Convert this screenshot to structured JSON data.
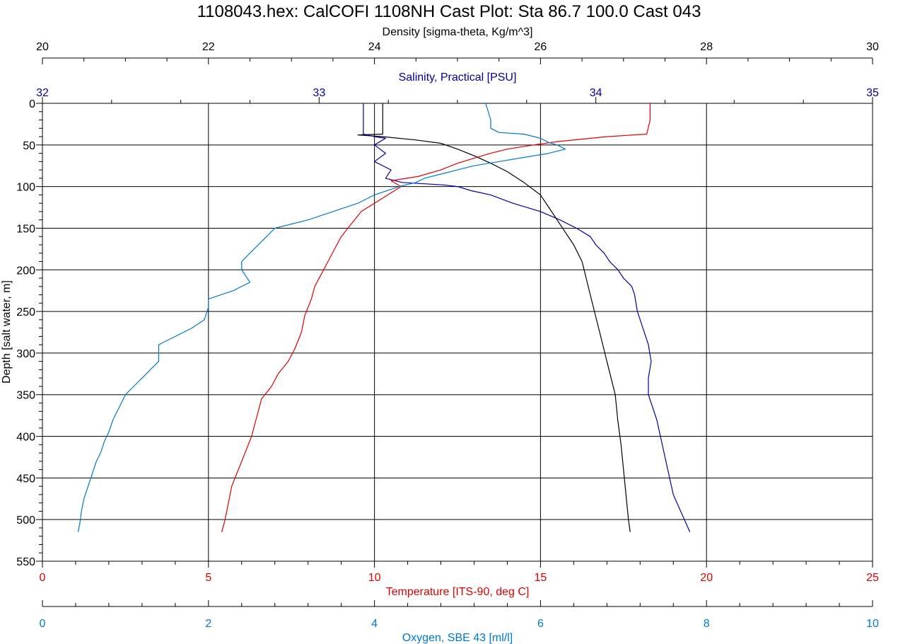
{
  "title": "1108043.hex: CalCOFI 1108NH Cast Plot: Sta 86.7 100.0  Cast 043",
  "colors": {
    "density": "#000000",
    "salinity": "#0000a0",
    "temperature": "#e00000",
    "oxygen": "#0078d0",
    "grid": "#000000"
  },
  "chart_data": {
    "type": "line",
    "title": "1108043.hex: CalCOFI 1108NH Cast Plot: Sta 86.7 100.0  Cast 043",
    "grid": true,
    "y_axis": {
      "label": "Depth [salt water, m]",
      "range": [
        0,
        550
      ],
      "inverted": true,
      "ticks": [
        0,
        50,
        100,
        150,
        200,
        250,
        300,
        350,
        400,
        450,
        500,
        550
      ]
    },
    "x_axes": {
      "density": {
        "label": "Density [sigma-theta, Kg/m^3]",
        "range": [
          20,
          30
        ],
        "ticks": [
          20,
          22,
          24,
          26,
          28,
          30
        ],
        "position": "top"
      },
      "salinity": {
        "label": "Salinity, Practical [PSU]",
        "range": [
          32,
          35
        ],
        "ticks": [
          32,
          33,
          34,
          35
        ],
        "position": "top"
      },
      "temperature": {
        "label": "Temperature [ITS-90, deg C]",
        "range": [
          0,
          25
        ],
        "ticks": [
          0,
          5,
          10,
          15,
          20,
          25
        ],
        "position": "bottom"
      },
      "oxygen": {
        "label": "Oxygen, SBE 43 [ml/l]",
        "range": [
          0,
          10
        ],
        "ticks": [
          0,
          2,
          4,
          6,
          8,
          10
        ],
        "position": "bottom"
      }
    },
    "series": [
      {
        "name": "Density",
        "axis": "density",
        "points": [
          [
            24.1,
            0
          ],
          [
            24.1,
            20
          ],
          [
            24.1,
            37
          ],
          [
            23.8,
            38
          ],
          [
            24.1,
            40
          ],
          [
            24.5,
            44
          ],
          [
            24.8,
            48
          ],
          [
            25.0,
            55
          ],
          [
            25.2,
            63
          ],
          [
            25.4,
            72
          ],
          [
            25.6,
            82
          ],
          [
            25.8,
            95
          ],
          [
            26.0,
            110
          ],
          [
            26.1,
            125
          ],
          [
            26.2,
            140
          ],
          [
            26.3,
            155
          ],
          [
            26.4,
            170
          ],
          [
            26.5,
            190
          ],
          [
            26.55,
            210
          ],
          [
            26.6,
            230
          ],
          [
            26.65,
            250
          ],
          [
            26.7,
            270
          ],
          [
            26.75,
            290
          ],
          [
            26.8,
            310
          ],
          [
            26.85,
            330
          ],
          [
            26.9,
            350
          ],
          [
            26.93,
            380
          ],
          [
            26.97,
            410
          ],
          [
            27.0,
            440
          ],
          [
            27.03,
            470
          ],
          [
            27.06,
            500
          ],
          [
            27.08,
            515
          ]
        ]
      },
      {
        "name": "Salinity",
        "axis": "salinity",
        "points": [
          [
            33.16,
            0
          ],
          [
            33.16,
            20
          ],
          [
            33.16,
            37
          ],
          [
            33.2,
            40
          ],
          [
            33.24,
            42
          ],
          [
            33.2,
            50
          ],
          [
            33.24,
            60
          ],
          [
            33.2,
            70
          ],
          [
            33.26,
            80
          ],
          [
            33.24,
            90
          ],
          [
            33.3,
            95
          ],
          [
            33.45,
            98
          ],
          [
            33.5,
            100
          ],
          [
            33.55,
            105
          ],
          [
            33.62,
            110
          ],
          [
            33.7,
            120
          ],
          [
            33.8,
            130
          ],
          [
            33.87,
            140
          ],
          [
            33.93,
            150
          ],
          [
            33.98,
            160
          ],
          [
            34.0,
            170
          ],
          [
            34.03,
            180
          ],
          [
            34.05,
            190
          ],
          [
            34.08,
            200
          ],
          [
            34.1,
            210
          ],
          [
            34.13,
            220
          ],
          [
            34.14,
            230
          ],
          [
            34.15,
            250
          ],
          [
            34.17,
            270
          ],
          [
            34.19,
            290
          ],
          [
            34.2,
            310
          ],
          [
            34.19,
            330
          ],
          [
            34.19,
            350
          ],
          [
            34.22,
            380
          ],
          [
            34.24,
            410
          ],
          [
            34.26,
            440
          ],
          [
            34.28,
            470
          ],
          [
            34.32,
            500
          ],
          [
            34.34,
            515
          ]
        ]
      },
      {
        "name": "Temperature",
        "axis": "temperature",
        "points": [
          [
            18.3,
            0
          ],
          [
            18.3,
            20
          ],
          [
            18.2,
            37
          ],
          [
            17.0,
            40
          ],
          [
            15.5,
            46
          ],
          [
            14.8,
            50
          ],
          [
            14.0,
            55
          ],
          [
            13.5,
            60
          ],
          [
            13.0,
            66
          ],
          [
            12.5,
            72
          ],
          [
            12.0,
            80
          ],
          [
            11.3,
            88
          ],
          [
            10.5,
            93
          ],
          [
            10.8,
            100
          ],
          [
            10.4,
            110
          ],
          [
            10.0,
            120
          ],
          [
            9.6,
            130
          ],
          [
            9.3,
            145
          ],
          [
            9.0,
            160
          ],
          [
            8.8,
            175
          ],
          [
            8.6,
            190
          ],
          [
            8.4,
            205
          ],
          [
            8.2,
            220
          ],
          [
            8.1,
            235
          ],
          [
            7.9,
            255
          ],
          [
            7.8,
            275
          ],
          [
            7.6,
            295
          ],
          [
            7.4,
            310
          ],
          [
            7.1,
            325
          ],
          [
            6.9,
            340
          ],
          [
            6.6,
            355
          ],
          [
            6.5,
            370
          ],
          [
            6.4,
            385
          ],
          [
            6.3,
            400
          ],
          [
            6.1,
            420
          ],
          [
            5.9,
            440
          ],
          [
            5.7,
            460
          ],
          [
            5.6,
            480
          ],
          [
            5.5,
            500
          ],
          [
            5.4,
            515
          ]
        ]
      },
      {
        "name": "Oxygen",
        "axis": "oxygen",
        "points": [
          [
            5.34,
            0
          ],
          [
            5.4,
            20
          ],
          [
            5.4,
            30
          ],
          [
            5.5,
            35
          ],
          [
            5.8,
            37
          ],
          [
            6.0,
            42
          ],
          [
            6.1,
            47
          ],
          [
            6.2,
            50
          ],
          [
            6.3,
            55
          ],
          [
            6.1,
            60
          ],
          [
            5.8,
            65
          ],
          [
            5.5,
            70
          ],
          [
            5.2,
            75
          ],
          [
            5.0,
            80
          ],
          [
            4.8,
            85
          ],
          [
            4.6,
            90
          ],
          [
            4.5,
            95
          ],
          [
            4.3,
            100
          ],
          [
            4.0,
            110
          ],
          [
            3.8,
            120
          ],
          [
            3.5,
            130
          ],
          [
            3.2,
            140
          ],
          [
            2.8,
            150
          ],
          [
            2.7,
            160
          ],
          [
            2.6,
            170
          ],
          [
            2.5,
            180
          ],
          [
            2.4,
            190
          ],
          [
            2.4,
            200
          ],
          [
            2.5,
            215
          ],
          [
            2.3,
            225
          ],
          [
            2.0,
            235
          ],
          [
            2.0,
            245
          ],
          [
            1.95,
            260
          ],
          [
            1.8,
            270
          ],
          [
            1.6,
            280
          ],
          [
            1.4,
            290
          ],
          [
            1.4,
            310
          ],
          [
            1.3,
            320
          ],
          [
            1.2,
            330
          ],
          [
            1.1,
            340
          ],
          [
            1.0,
            350
          ],
          [
            0.95,
            360
          ],
          [
            0.9,
            370
          ],
          [
            0.85,
            380
          ],
          [
            0.8,
            395
          ],
          [
            0.75,
            405
          ],
          [
            0.7,
            420
          ],
          [
            0.65,
            430
          ],
          [
            0.6,
            445
          ],
          [
            0.55,
            460
          ],
          [
            0.5,
            475
          ],
          [
            0.47,
            490
          ],
          [
            0.45,
            505
          ],
          [
            0.43,
            515
          ]
        ]
      }
    ]
  }
}
